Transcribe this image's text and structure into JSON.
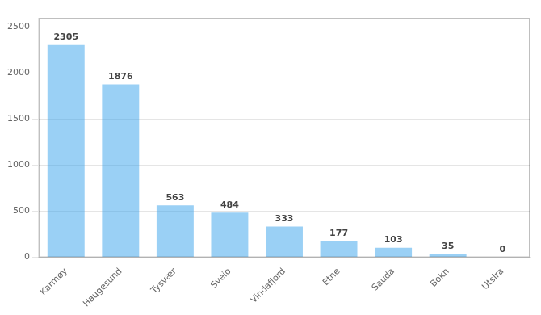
{
  "chart_data": {
    "type": "bar",
    "categories": [
      "Karmøy",
      "Haugesund",
      "Tysvær",
      "Sveio",
      "Vindafjord",
      "Etne",
      "Sauda",
      "Bokn",
      "Utsira"
    ],
    "values": [
      2305,
      1876,
      563,
      484,
      333,
      177,
      103,
      35,
      0
    ],
    "ylim": [
      0,
      2600
    ],
    "yticks": [
      0,
      500,
      1000,
      1500,
      2000,
      2500
    ],
    "grid": true,
    "data_labels": true
  }
}
